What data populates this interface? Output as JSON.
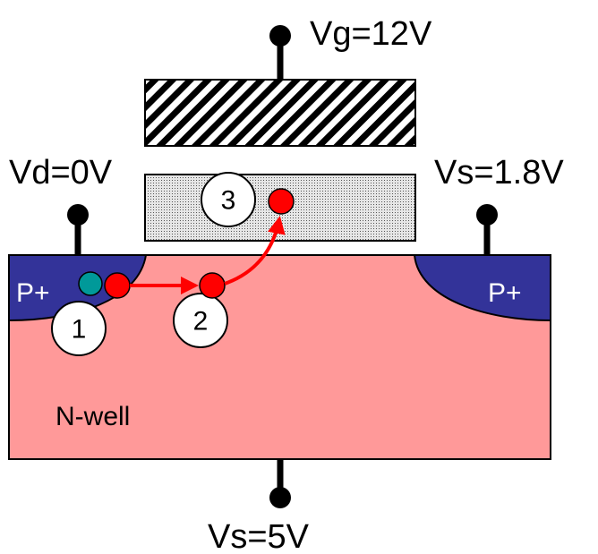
{
  "labels": {
    "gate_voltage": "Vg=12V",
    "drain_voltage": "Vd=0V",
    "source_voltage": "Vs=1.8V",
    "substrate_voltage": "Vs=5V",
    "p_plus_left": "P+",
    "p_plus_right": "P+",
    "n_well": "N-well"
  },
  "markers": {
    "step1": "1",
    "step2": "2",
    "step3": "3"
  },
  "colors": {
    "n_well": "#ff9999",
    "p_plus": "#333399",
    "electron": "#ff0000",
    "hole": "#009999",
    "arrow": "#ff0000",
    "terminal": "#000000",
    "floating_gate_fill": "#d9d9d9"
  }
}
